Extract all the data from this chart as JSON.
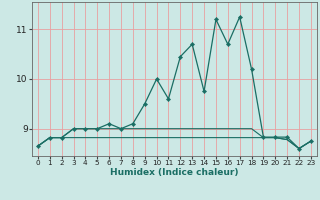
{
  "xlabel": "Humidex (Indice chaleur)",
  "bg_color": "#cce8e5",
  "grid_color": "#e8a0a0",
  "line_color": "#1a6e64",
  "xmin": -0.5,
  "xmax": 23.5,
  "ymin": 8.45,
  "ymax": 11.55,
  "yticks": [
    9,
    10,
    11
  ],
  "xticks": [
    0,
    1,
    2,
    3,
    4,
    5,
    6,
    7,
    8,
    9,
    10,
    11,
    12,
    13,
    14,
    15,
    16,
    17,
    18,
    19,
    20,
    21,
    22,
    23
  ],
  "series1": [
    8.65,
    8.82,
    8.82,
    9.0,
    9.0,
    9.0,
    9.1,
    9.0,
    9.1,
    9.5,
    10.0,
    9.6,
    10.45,
    10.7,
    9.75,
    11.2,
    10.7,
    11.25,
    10.2,
    8.83,
    8.83,
    8.83,
    8.6,
    8.75
  ],
  "series2": [
    8.65,
    8.82,
    8.82,
    8.82,
    8.82,
    8.82,
    8.82,
    8.82,
    8.82,
    8.82,
    8.82,
    8.82,
    8.82,
    8.82,
    8.82,
    8.82,
    8.82,
    8.82,
    8.82,
    8.82,
    8.82,
    8.78,
    8.6,
    8.75
  ],
  "series3": [
    8.65,
    8.82,
    8.82,
    9.0,
    9.0,
    9.0,
    9.0,
    9.0,
    9.0,
    9.0,
    9.0,
    9.0,
    9.0,
    9.0,
    9.0,
    9.0,
    9.0,
    9.0,
    9.0,
    8.82,
    8.82,
    8.78,
    8.6,
    8.75
  ]
}
